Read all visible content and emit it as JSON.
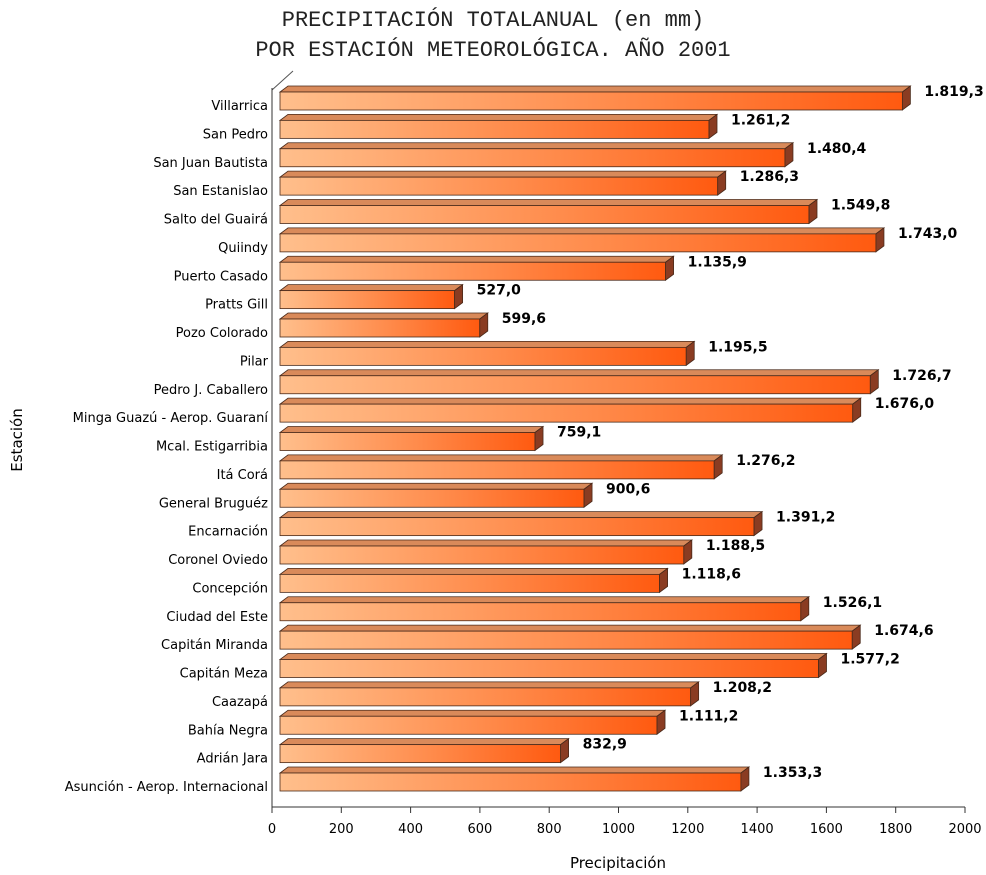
{
  "chart_data": {
    "type": "bar",
    "orientation": "horizontal",
    "title_line1": "PRECIPITACIÓN TOTALANUAL (en mm)",
    "title_line2": "POR ESTACIÓN METEOROLÓGICA. AÑO 2001",
    "xlabel": "Precipitación",
    "ylabel": "Estación",
    "xlim": [
      0,
      2000
    ],
    "xticks": [
      0,
      200,
      400,
      600,
      800,
      1000,
      1200,
      1400,
      1600,
      1800,
      2000
    ],
    "xtick_labels": [
      "0",
      "200",
      "400",
      "600",
      "800",
      "1000",
      "1200",
      "1400",
      "1600",
      "1800",
      "2000"
    ],
    "categories": [
      "Villarrica",
      "San Pedro",
      "San Juan Bautista",
      "San Estanislao",
      "Salto del Guairá",
      "Quiindy",
      "Puerto Casado",
      "Pratts Gill",
      "Pozo Colorado",
      "Pilar",
      "Pedro J. Caballero",
      "Minga Guazú - Aerop. Guaraní",
      "Mcal. Estigarribia",
      "Itá Corá",
      "General Bruguéz",
      "Encarnación",
      "Coronel Oviedo",
      "Concepción",
      "Ciudad del Este",
      "Capitán Miranda",
      "Capitán Meza",
      "Caazapá",
      "Bahía Negra",
      "Adrián Jara",
      "Asunción - Aerop. Internacional"
    ],
    "values": [
      1819.3,
      1261.2,
      1480.4,
      1286.3,
      1549.8,
      1743.0,
      1135.9,
      527.0,
      599.6,
      1195.5,
      1726.7,
      1676.0,
      759.1,
      1276.2,
      900.6,
      1391.2,
      1188.5,
      1118.6,
      1526.1,
      1674.6,
      1577.2,
      1208.2,
      1111.2,
      832.9,
      1353.3
    ],
    "value_labels": [
      "1.819,3",
      "1.261,2",
      "1.480,4",
      "1.286,3",
      "1.549,8",
      "1.743,0",
      "1.135,9",
      "527,0",
      "599,6",
      "1.195,5",
      "1.726,7",
      "1.676,0",
      "759,1",
      "1.276,2",
      "900,6",
      "1.391,2",
      "1.188,5",
      "1.118,6",
      "1.526,1",
      "1.674,6",
      "1.577,2",
      "1.208,2",
      "1.111,2",
      "832,9",
      "1.353,3"
    ],
    "grid": false,
    "legend": "none",
    "colors": {
      "bar_light": "#ffbf8c",
      "bar_mid": "#ff8a4a",
      "bar_dark": "#ff5a10",
      "bar_top": "#d98a5a",
      "bar_end": "#8a3c22",
      "outline": "#4a2a1a"
    }
  }
}
